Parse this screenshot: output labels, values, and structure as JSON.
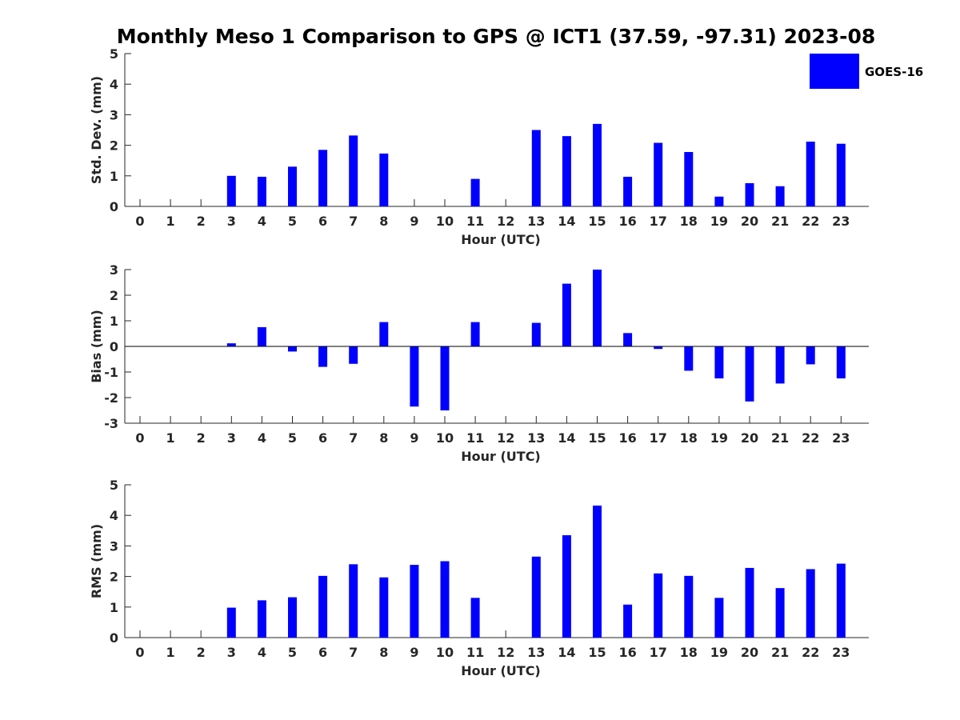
{
  "chart_data": {
    "title": "Monthly Meso 1 Comparison to GPS @ ICT1 (37.59, -97.31) 2023-08",
    "series_name": "GOES-16",
    "bar_color": "#0000ff",
    "axis_color": "#262626",
    "categories": [
      "0",
      "1",
      "2",
      "3",
      "4",
      "5",
      "6",
      "7",
      "8",
      "9",
      "10",
      "11",
      "12",
      "13",
      "14",
      "15",
      "16",
      "17",
      "18",
      "19",
      "20",
      "21",
      "22",
      "23"
    ],
    "panels": [
      {
        "type": "bar",
        "id": "std-dev",
        "ylabel": "Std. Dev. (mm)",
        "xlabel": "Hour (UTC)",
        "ylim": [
          0,
          5
        ],
        "yticks": [
          0,
          1,
          2,
          3,
          4,
          5
        ],
        "zero_line": false,
        "values": [
          null,
          null,
          null,
          1.0,
          0.97,
          1.3,
          1.85,
          2.32,
          1.73,
          null,
          null,
          0.9,
          null,
          2.5,
          2.3,
          2.7,
          0.97,
          2.08,
          1.78,
          0.32,
          0.76,
          0.66,
          2.12,
          2.05
        ]
      },
      {
        "type": "bar",
        "id": "bias",
        "ylabel": "Bias (mm)",
        "xlabel": "Hour (UTC)",
        "ylim": [
          -3,
          3
        ],
        "yticks": [
          -3,
          -2,
          -1,
          0,
          1,
          2,
          3
        ],
        "zero_line": true,
        "values": [
          null,
          null,
          null,
          0.12,
          0.75,
          -0.2,
          -0.8,
          -0.68,
          0.95,
          -2.35,
          -2.5,
          0.95,
          null,
          0.92,
          2.45,
          3.0,
          0.52,
          -0.1,
          -0.95,
          -1.25,
          -2.15,
          -1.45,
          -0.7,
          -1.25
        ]
      },
      {
        "type": "bar",
        "id": "rms",
        "ylabel": "RMS (mm)",
        "xlabel": "Hour (UTC)",
        "ylim": [
          0,
          5
        ],
        "yticks": [
          0,
          1,
          2,
          3,
          4,
          5
        ],
        "zero_line": false,
        "values": [
          null,
          null,
          null,
          0.98,
          1.22,
          1.32,
          2.02,
          2.4,
          1.97,
          2.38,
          2.5,
          1.3,
          null,
          2.65,
          3.35,
          4.32,
          1.08,
          2.1,
          2.02,
          1.3,
          2.28,
          1.62,
          2.24,
          2.42
        ]
      }
    ],
    "legend": {
      "label": "GOES-16",
      "placement": "top-right"
    }
  }
}
